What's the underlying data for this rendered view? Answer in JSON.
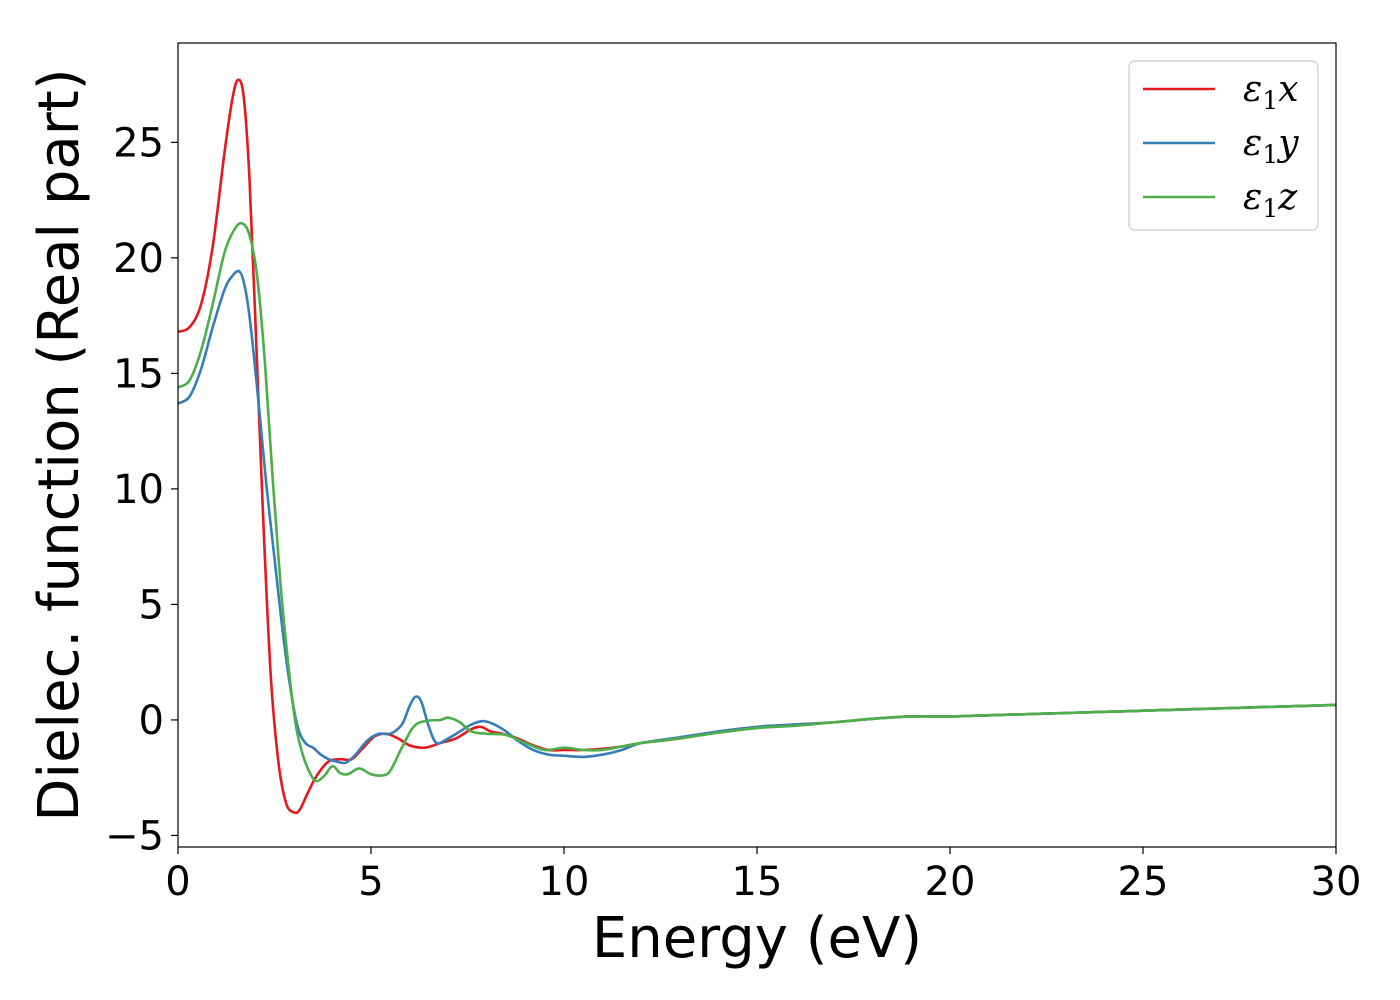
{
  "chart_data": {
    "type": "line",
    "title": "",
    "xlabel": "Energy (eV)",
    "ylabel": "Dielec. function (Real part)",
    "xlim": [
      0,
      30
    ],
    "ylim": [
      -5.5,
      29.3
    ],
    "xticks": [
      0,
      5,
      10,
      15,
      20,
      25,
      30
    ],
    "yticks": [
      -5,
      0,
      5,
      10,
      15,
      20,
      25
    ],
    "xtick_labels": [
      "0",
      "5",
      "10",
      "15",
      "20",
      "25",
      "30"
    ],
    "ytick_labels": [
      "−5",
      "0",
      "5",
      "10",
      "15",
      "20",
      "25"
    ],
    "grid": false,
    "legend_position": "top-right",
    "series": [
      {
        "name": "ε1x",
        "legend_base": "ε",
        "legend_sub": "1",
        "legend_var": "x",
        "color": "#e41a1c",
        "x": [
          0,
          0.3,
          0.6,
          0.9,
          1.2,
          1.4,
          1.55,
          1.7,
          1.85,
          2.0,
          2.2,
          2.4,
          2.6,
          2.8,
          3.0,
          3.15,
          3.35,
          3.6,
          3.9,
          4.2,
          4.5,
          4.8,
          5.1,
          5.4,
          5.7,
          6.0,
          6.4,
          6.8,
          7.2,
          7.6,
          7.85,
          8.1,
          8.4,
          8.8,
          9.2,
          9.6,
          10.0,
          10.5,
          11.0,
          11.5,
          12.0,
          13.0,
          14.0,
          15.0,
          16.0,
          17.0,
          18.0,
          19.0,
          20.0,
          21.0,
          22.0,
          23.0,
          24.0,
          25.0,
          26.0,
          27.0,
          28.0,
          29.0,
          30.0
        ],
        "y": [
          16.8,
          17.0,
          18.0,
          20.5,
          24.5,
          26.8,
          27.7,
          27.0,
          23.5,
          17.5,
          9.0,
          2.0,
          -1.8,
          -3.6,
          -4.0,
          -3.9,
          -3.2,
          -2.4,
          -1.8,
          -1.7,
          -1.7,
          -1.2,
          -0.7,
          -0.6,
          -0.8,
          -1.1,
          -1.2,
          -1.0,
          -0.8,
          -0.4,
          -0.3,
          -0.5,
          -0.6,
          -0.8,
          -1.1,
          -1.3,
          -1.3,
          -1.3,
          -1.25,
          -1.15,
          -1.0,
          -0.8,
          -0.5,
          -0.3,
          -0.2,
          -0.1,
          0.05,
          0.15,
          0.15,
          0.2,
          0.25,
          0.3,
          0.35,
          0.4,
          0.45,
          0.5,
          0.55,
          0.6,
          0.65
        ]
      },
      {
        "name": "ε1y",
        "legend_base": "ε",
        "legend_sub": "1",
        "legend_var": "y",
        "color": "#377eb8",
        "x": [
          0,
          0.3,
          0.6,
          0.9,
          1.2,
          1.4,
          1.6,
          1.75,
          1.9,
          2.1,
          2.3,
          2.5,
          2.7,
          2.9,
          3.1,
          3.3,
          3.5,
          3.7,
          3.9,
          4.1,
          4.35,
          4.6,
          4.9,
          5.2,
          5.5,
          5.8,
          6.0,
          6.15,
          6.3,
          6.5,
          6.7,
          7.0,
          7.3,
          7.6,
          7.9,
          8.2,
          8.5,
          8.8,
          9.2,
          9.6,
          10.0,
          10.5,
          11.0,
          11.5,
          12.0,
          13.0,
          14.0,
          15.0,
          16.0,
          17.0,
          18.0,
          19.0,
          20.0,
          21.0,
          22.0,
          23.0,
          24.0,
          25.0,
          26.0,
          27.0,
          28.0,
          29.0,
          30.0
        ],
        "y": [
          13.7,
          14.0,
          15.2,
          17.0,
          18.6,
          19.2,
          19.4,
          18.6,
          16.8,
          13.5,
          10.0,
          7.0,
          4.0,
          1.5,
          -0.3,
          -1.0,
          -1.2,
          -1.5,
          -1.7,
          -1.8,
          -1.85,
          -1.5,
          -0.9,
          -0.6,
          -0.6,
          -0.2,
          0.6,
          1.0,
          0.8,
          -0.3,
          -1.0,
          -0.8,
          -0.5,
          -0.2,
          -0.05,
          -0.2,
          -0.5,
          -0.9,
          -1.3,
          -1.5,
          -1.55,
          -1.6,
          -1.5,
          -1.3,
          -1.0,
          -0.75,
          -0.5,
          -0.3,
          -0.2,
          -0.1,
          0.05,
          0.15,
          0.15,
          0.2,
          0.25,
          0.3,
          0.35,
          0.4,
          0.45,
          0.5,
          0.55,
          0.6,
          0.65
        ]
      },
      {
        "name": "ε1z",
        "legend_base": "ε",
        "legend_sub": "1",
        "legend_var": "z",
        "color": "#4daf4a",
        "x": [
          0,
          0.3,
          0.6,
          0.9,
          1.2,
          1.45,
          1.65,
          1.85,
          2.05,
          2.25,
          2.45,
          2.65,
          2.85,
          3.05,
          3.25,
          3.45,
          3.6,
          3.8,
          4.0,
          4.2,
          4.4,
          4.7,
          5.0,
          5.3,
          5.5,
          5.8,
          6.1,
          6.4,
          6.8,
          7.0,
          7.3,
          7.6,
          8.0,
          8.5,
          9.0,
          9.5,
          10.0,
          10.5,
          11.0,
          11.5,
          12.0,
          13.0,
          14.0,
          15.0,
          16.0,
          17.0,
          18.0,
          19.0,
          20.0,
          21.0,
          22.0,
          23.0,
          24.0,
          25.0,
          26.0,
          27.0,
          28.0,
          29.0,
          30.0
        ],
        "y": [
          14.4,
          14.7,
          16.0,
          18.0,
          20.2,
          21.2,
          21.5,
          21.0,
          19.2,
          15.5,
          10.5,
          6.0,
          2.5,
          -0.2,
          -1.6,
          -2.4,
          -2.65,
          -2.4,
          -2.0,
          -2.3,
          -2.35,
          -2.1,
          -2.35,
          -2.4,
          -2.2,
          -1.2,
          -0.3,
          -0.05,
          0.0,
          0.1,
          -0.1,
          -0.5,
          -0.6,
          -0.65,
          -1.0,
          -1.3,
          -1.2,
          -1.3,
          -1.3,
          -1.15,
          -1.0,
          -0.8,
          -0.55,
          -0.35,
          -0.25,
          -0.1,
          0.05,
          0.15,
          0.15,
          0.2,
          0.25,
          0.3,
          0.35,
          0.4,
          0.45,
          0.5,
          0.55,
          0.6,
          0.65
        ]
      }
    ]
  }
}
